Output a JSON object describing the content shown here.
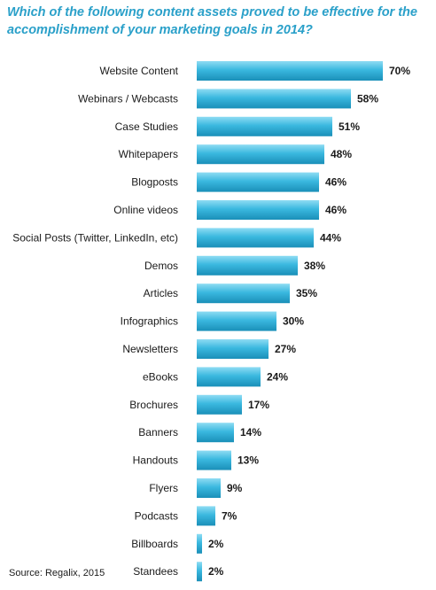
{
  "chart_data": {
    "type": "bar",
    "orientation": "horizontal",
    "title": "Which of the following content assets proved to be effective for the accomplishment of your marketing goals in 2014?",
    "categories": [
      "Website Content",
      "Webinars / Webcasts",
      "Case Studies",
      "Whitepapers",
      "Blogposts",
      "Online videos",
      "Social Posts (Twitter, LinkedIn, etc)",
      "Demos",
      "Articles",
      "Infographics",
      "Newsletters",
      "eBooks",
      "Brochures",
      "Banners",
      "Handouts",
      "Flyers",
      "Podcasts",
      "Billboards",
      "Standees"
    ],
    "values": [
      70,
      58,
      51,
      48,
      46,
      46,
      44,
      38,
      35,
      30,
      27,
      24,
      17,
      14,
      13,
      9,
      7,
      2,
      2
    ],
    "value_labels": [
      "70%",
      "58%",
      "51%",
      "48%",
      "46%",
      "46%",
      "44%",
      "38%",
      "35%",
      "30%",
      "27%",
      "24%",
      "17%",
      "14%",
      "13%",
      "9%",
      "7%",
      "2%",
      "2%"
    ],
    "xlim": [
      0,
      70
    ],
    "grid": false,
    "legend": "none",
    "colors": {
      "bar_dark": "#1a8fb8",
      "bar_light": "#8fdcf3",
      "title": "#2aa0c9"
    }
  },
  "source": "Source: Regalix, 2015"
}
